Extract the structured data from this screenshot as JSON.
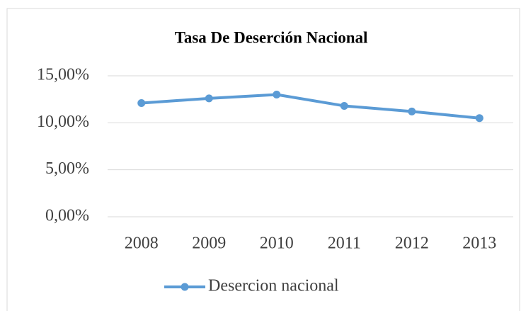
{
  "chart_data": {
    "type": "line",
    "title": "Tasa De Deserción Nacional",
    "categories": [
      "2008",
      "2009",
      "2010",
      "2011",
      "2012",
      "2013"
    ],
    "series": [
      {
        "name": "Desercion nacional",
        "color": "#5b9bd5",
        "values": [
          12.1,
          12.6,
          13.0,
          11.8,
          11.2,
          10.5
        ]
      }
    ],
    "ylim": [
      0,
      15
    ],
    "yticks": [
      {
        "value": 0,
        "label": "0,00%"
      },
      {
        "value": 5,
        "label": "5,00%"
      },
      {
        "value": 10,
        "label": "10,00%"
      },
      {
        "value": 15,
        "label": "15,00%"
      }
    ],
    "grid": true,
    "legend": "bottom"
  }
}
